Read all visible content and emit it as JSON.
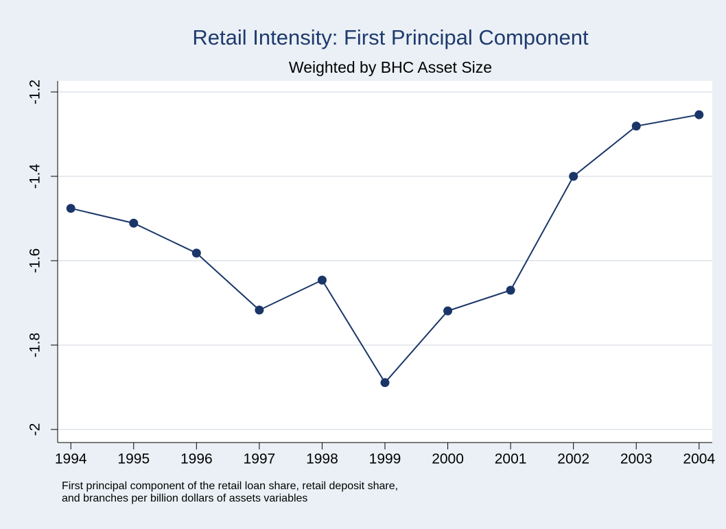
{
  "chart_data": {
    "type": "line",
    "title": "Retail Intensity: First Principal Component",
    "subtitle": "Weighted by BHC Asset Size",
    "note": [
      "First principal component of the retail loan share, retail deposit share,",
      "and branches per billion dollars of assets variables"
    ],
    "x": [
      1994,
      1995,
      1996,
      1997,
      1998,
      1999,
      2000,
      2001,
      2002,
      2003,
      2004
    ],
    "series": [
      {
        "color": "#1a3668",
        "values": [
          -1.476,
          -1.511,
          -1.582,
          -1.717,
          -1.646,
          -1.889,
          -1.719,
          -1.67,
          -1.4,
          -1.281,
          -1.254
        ]
      }
    ],
    "xlim": [
      1993.79,
      2004.21
    ],
    "xticks": [
      1994,
      1995,
      1996,
      1997,
      1998,
      1999,
      2000,
      2001,
      2002,
      2003,
      2004
    ],
    "ylim": [
      -2.031,
      -1.174
    ],
    "yticks": [
      -2,
      -1.8,
      -1.6,
      -1.4,
      -1.2
    ],
    "grid": true
  }
}
